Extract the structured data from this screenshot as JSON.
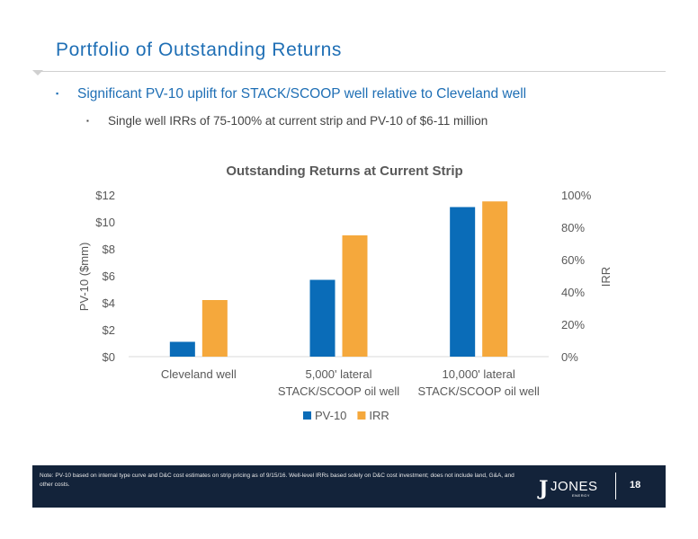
{
  "slide": {
    "title": "Portfolio of Outstanding Returns",
    "bullet_1": "Significant PV-10 uplift for STACK/SCOOP well relative to Cleveland well",
    "bullet_2": "Single well IRRs of 75-100% at current strip and PV-10 of $6-11 million",
    "bullet_1_marker": "▪",
    "bullet_2_marker": "▪"
  },
  "chart_data": {
    "type": "bar",
    "title": "Outstanding Returns at Current Strip",
    "categories": [
      [
        "Cleveland well"
      ],
      [
        "5,000' lateral",
        "STACK/SCOOP oil well"
      ],
      [
        "10,000' lateral",
        "STACK/SCOOP oil well"
      ]
    ],
    "series": [
      {
        "name": "PV-10",
        "axis": "left",
        "color": "#0a6cb8",
        "values": [
          1.1,
          5.7,
          11.1
        ]
      },
      {
        "name": "IRR",
        "axis": "right",
        "color": "#f5a83c",
        "values": [
          0.35,
          0.75,
          0.96
        ]
      }
    ],
    "left_axis": {
      "label": "PV-10 ($mm)",
      "min": 0,
      "max": 12,
      "ticks": [
        "$0",
        "$2",
        "$4",
        "$6",
        "$8",
        "$10",
        "$12"
      ],
      "tick_values": [
        0,
        2,
        4,
        6,
        8,
        10,
        12
      ]
    },
    "right_axis": {
      "label": "IRR",
      "min": 0,
      "max": 1,
      "ticks": [
        "0%",
        "20%",
        "40%",
        "60%",
        "80%",
        "100%"
      ],
      "tick_values": [
        0,
        0.2,
        0.4,
        0.6,
        0.8,
        1.0
      ]
    },
    "legend": "bottom",
    "grid": false
  },
  "footer": {
    "note": "Note: PV-10 based on internal type curve and D&C cost estimates on strip pricing as of 9/15/16. Well-level IRRs based solely on D&C cost investment; does not include land, G&A, and other costs.",
    "logo_text": "JONES",
    "logo_sub": "ENERGY",
    "logo_mark": "J",
    "page_number": "18"
  }
}
